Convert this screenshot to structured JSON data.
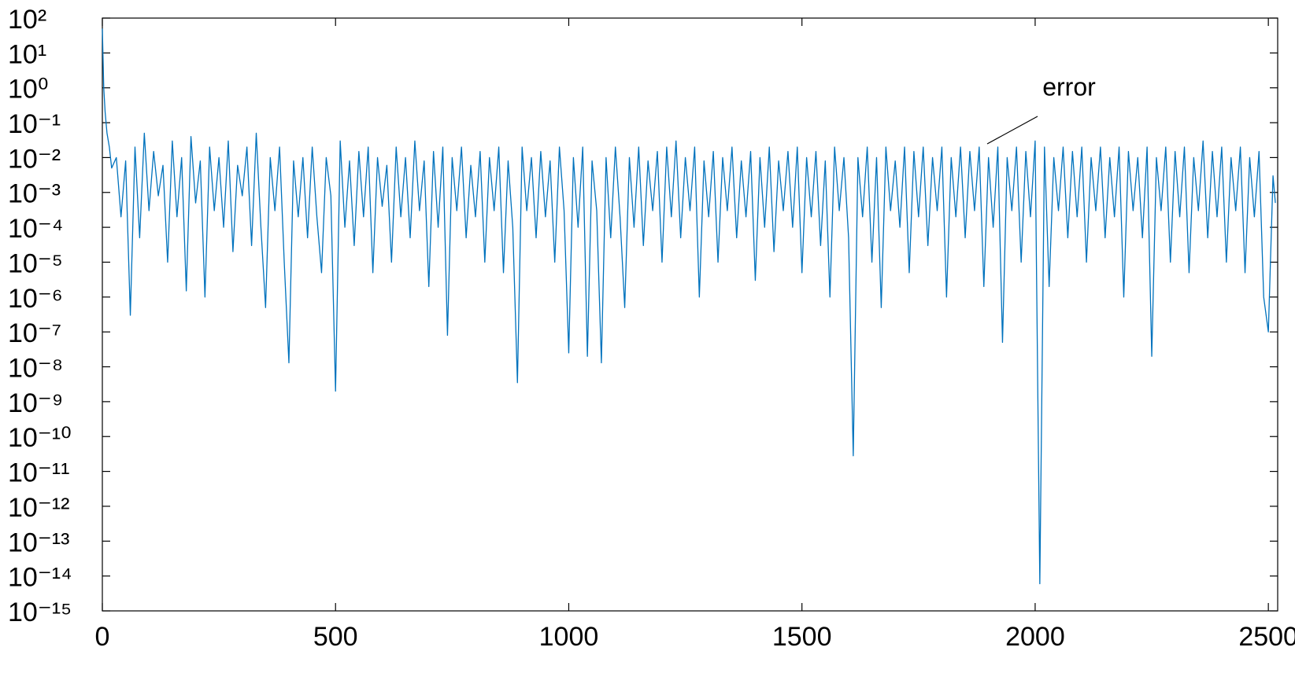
{
  "chart_data": {
    "type": "line",
    "ylog": true,
    "color": "#0072bd",
    "annotation": "error",
    "xlim": [
      0,
      2520
    ],
    "xticks": [
      0,
      500,
      1000,
      1500,
      2000,
      2500
    ],
    "ylim": [
      1e-15,
      100
    ],
    "yticks": [
      {
        "value": 1e-15,
        "label": "10⁻¹⁵"
      },
      {
        "value": 1e-14,
        "label": "10⁻¹⁴"
      },
      {
        "value": 1e-13,
        "label": "10⁻¹³"
      },
      {
        "value": 1e-12,
        "label": "10⁻¹²"
      },
      {
        "value": 1e-11,
        "label": "10⁻¹¹"
      },
      {
        "value": 1e-10,
        "label": "10⁻¹⁰"
      },
      {
        "value": 1e-09,
        "label": "10⁻⁹"
      },
      {
        "value": 1e-08,
        "label": "10⁻⁸"
      },
      {
        "value": 1e-07,
        "label": "10⁻⁷"
      },
      {
        "value": 1e-06,
        "label": "10⁻⁶"
      },
      {
        "value": 1e-05,
        "label": "10⁻⁵"
      },
      {
        "value": 0.0001,
        "label": "10⁻⁴"
      },
      {
        "value": 0.001,
        "label": "10⁻³"
      },
      {
        "value": 0.01,
        "label": "10⁻²"
      },
      {
        "value": 0.1,
        "label": "10⁻¹"
      },
      {
        "value": 1,
        "label": "10⁰"
      },
      {
        "value": 10,
        "label": "10¹"
      },
      {
        "value": 100,
        "label": "10²"
      }
    ],
    "x": [
      0,
      3,
      6,
      10,
      15,
      20,
      30,
      40,
      50,
      60,
      70,
      80,
      90,
      100,
      110,
      120,
      130,
      140,
      150,
      160,
      170,
      180,
      190,
      200,
      210,
      220,
      230,
      240,
      250,
      260,
      270,
      280,
      290,
      300,
      310,
      320,
      330,
      340,
      350,
      360,
      370,
      380,
      390,
      400,
      410,
      420,
      430,
      440,
      450,
      460,
      470,
      480,
      490,
      500,
      510,
      520,
      530,
      540,
      550,
      560,
      570,
      580,
      590,
      600,
      610,
      620,
      630,
      640,
      650,
      660,
      670,
      680,
      690,
      700,
      710,
      720,
      730,
      740,
      750,
      760,
      770,
      780,
      790,
      800,
      810,
      820,
      830,
      840,
      850,
      860,
      870,
      880,
      890,
      900,
      910,
      920,
      930,
      940,
      950,
      960,
      970,
      980,
      990,
      1000,
      1010,
      1020,
      1030,
      1040,
      1050,
      1060,
      1070,
      1080,
      1090,
      1100,
      1110,
      1120,
      1130,
      1140,
      1150,
      1160,
      1170,
      1180,
      1190,
      1200,
      1210,
      1220,
      1230,
      1240,
      1250,
      1260,
      1270,
      1280,
      1290,
      1300,
      1310,
      1320,
      1330,
      1340,
      1350,
      1360,
      1370,
      1380,
      1390,
      1400,
      1410,
      1420,
      1430,
      1440,
      1450,
      1460,
      1470,
      1480,
      1490,
      1500,
      1510,
      1520,
      1530,
      1540,
      1550,
      1560,
      1570,
      1580,
      1590,
      1600,
      1610,
      1620,
      1630,
      1640,
      1650,
      1660,
      1670,
      1680,
      1690,
      1700,
      1710,
      1720,
      1730,
      1740,
      1750,
      1760,
      1770,
      1780,
      1790,
      1800,
      1810,
      1820,
      1830,
      1840,
      1850,
      1860,
      1870,
      1880,
      1890,
      1900,
      1910,
      1920,
      1930,
      1940,
      1950,
      1960,
      1970,
      1980,
      1990,
      2000,
      2010,
      2020,
      2030,
      2040,
      2050,
      2060,
      2070,
      2080,
      2090,
      2100,
      2110,
      2120,
      2130,
      2140,
      2150,
      2160,
      2170,
      2180,
      2190,
      2200,
      2210,
      2220,
      2230,
      2240,
      2250,
      2260,
      2270,
      2280,
      2290,
      2300,
      2310,
      2320,
      2330,
      2340,
      2350,
      2360,
      2370,
      2380,
      2390,
      2400,
      2410,
      2420,
      2430,
      2440,
      2450,
      2460,
      2470,
      2480,
      2490,
      2500,
      2510,
      2515
    ],
    "values": [
      50,
      1,
      0.2,
      0.05,
      0.02,
      0.005,
      0.01,
      0.0002,
      0.008,
      3e-07,
      0.02,
      5e-05,
      0.05,
      0.0003,
      0.015,
      0.0008,
      0.006,
      1e-05,
      0.03,
      0.0002,
      0.01,
      1.5e-06,
      0.04,
      0.0005,
      0.008,
      1e-06,
      0.02,
      0.0003,
      0.01,
      0.0001,
      0.03,
      2e-05,
      0.006,
      0.0008,
      0.02,
      3e-05,
      0.05,
      0.0001,
      5e-07,
      0.01,
      0.0003,
      0.02,
      1e-05,
      1.3e-08,
      0.008,
      0.0002,
      0.01,
      5e-05,
      0.02,
      0.0002,
      5e-06,
      0.01,
      0.0008,
      2e-09,
      0.03,
      0.0001,
      0.008,
      3e-05,
      0.015,
      0.0002,
      0.02,
      5e-06,
      0.01,
      0.0004,
      0.006,
      1e-05,
      0.02,
      0.0002,
      0.01,
      5e-05,
      0.03,
      0.0003,
      0.008,
      2e-06,
      0.015,
      0.0001,
      0.02,
      8e-08,
      0.01,
      0.0003,
      0.02,
      5e-05,
      0.006,
      0.0002,
      0.015,
      1e-05,
      0.01,
      0.0003,
      0.02,
      5e-06,
      0.008,
      0.0001,
      3.5e-09,
      0.02,
      0.0003,
      0.01,
      5e-05,
      0.015,
      0.0002,
      0.008,
      1e-05,
      0.02,
      0.0003,
      2.5e-08,
      0.01,
      0.0001,
      0.02,
      2e-08,
      0.008,
      0.0003,
      1.3e-08,
      0.01,
      5e-05,
      0.02,
      0.0002,
      5e-07,
      0.01,
      0.0001,
      0.02,
      3e-05,
      0.008,
      0.0003,
      0.015,
      1e-05,
      0.02,
      0.0002,
      0.03,
      5e-05,
      0.01,
      0.0003,
      0.02,
      1e-06,
      0.008,
      0.0002,
      0.015,
      1e-05,
      0.01,
      0.0003,
      0.02,
      5e-05,
      0.008,
      0.0002,
      0.015,
      3e-06,
      0.01,
      0.0001,
      0.02,
      2e-05,
      0.008,
      0.0003,
      0.015,
      0.0001,
      0.02,
      5e-06,
      0.01,
      0.0002,
      0.015,
      3e-05,
      0.008,
      1e-06,
      0.02,
      0.0003,
      0.01,
      5e-05,
      2.8e-11,
      0.01,
      0.0002,
      0.02,
      1e-05,
      0.01,
      5e-07,
      0.02,
      0.0003,
      0.008,
      0.0001,
      0.02,
      5e-06,
      0.015,
      0.0002,
      0.02,
      3e-05,
      0.01,
      0.0003,
      0.02,
      1e-06,
      0.01,
      0.0002,
      0.02,
      5e-05,
      0.015,
      0.0003,
      0.02,
      2e-06,
      0.01,
      0.0001,
      0.02,
      5e-08,
      0.01,
      0.0003,
      0.02,
      1e-05,
      0.015,
      0.0002,
      0.03,
      6e-15,
      0.02,
      2e-06,
      0.01,
      0.0003,
      0.02,
      5e-05,
      0.015,
      0.0002,
      0.02,
      1e-05,
      0.01,
      0.0003,
      0.02,
      5e-05,
      0.01,
      0.0002,
      0.02,
      1e-06,
      0.015,
      0.0003,
      0.01,
      5e-05,
      0.02,
      2e-08,
      0.01,
      0.0003,
      0.02,
      1e-05,
      0.015,
      0.0002,
      0.02,
      5e-06,
      0.01,
      0.0003,
      0.03,
      5e-05,
      0.015,
      0.0002,
      0.02,
      1e-05,
      0.01,
      0.0003,
      0.02,
      5e-06,
      0.01,
      0.0002,
      0.015,
      1e-06,
      1e-07,
      0.003,
      0.0005
    ]
  }
}
